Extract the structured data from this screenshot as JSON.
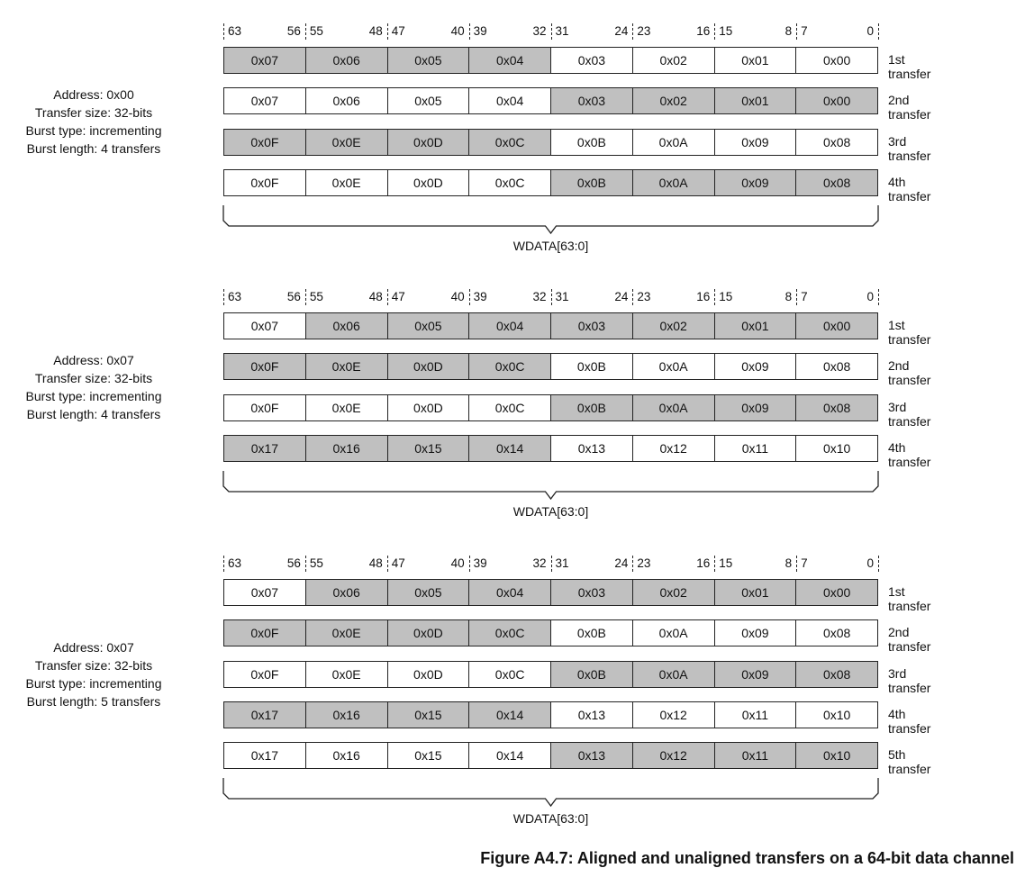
{
  "bit_ranges": [
    [
      "63",
      "56"
    ],
    [
      "55",
      "48"
    ],
    [
      "47",
      "40"
    ],
    [
      "39",
      "32"
    ],
    [
      "31",
      "24"
    ],
    [
      "23",
      "16"
    ],
    [
      "15",
      "8"
    ],
    [
      "7",
      "0"
    ]
  ],
  "shaded_color": "#c0c0c0",
  "sections": [
    {
      "info": [
        "Address: 0x00",
        "Transfer size: 32-bits",
        "Burst type: incrementing",
        "Burst length: 4 transfers"
      ],
      "bus_label": "WDATA[63:0]",
      "rows": [
        {
          "label": "1st transfer",
          "bytes": [
            "0x07",
            "0x06",
            "0x05",
            "0x04",
            "0x03",
            "0x02",
            "0x01",
            "0x00"
          ],
          "active": [
            1,
            1,
            1,
            1,
            0,
            0,
            0,
            0
          ]
        },
        {
          "label": "2nd transfer",
          "bytes": [
            "0x07",
            "0x06",
            "0x05",
            "0x04",
            "0x03",
            "0x02",
            "0x01",
            "0x00"
          ],
          "active": [
            0,
            0,
            0,
            0,
            1,
            1,
            1,
            1
          ]
        },
        {
          "label": "3rd transfer",
          "bytes": [
            "0x0F",
            "0x0E",
            "0x0D",
            "0x0C",
            "0x0B",
            "0x0A",
            "0x09",
            "0x08"
          ],
          "active": [
            1,
            1,
            1,
            1,
            0,
            0,
            0,
            0
          ]
        },
        {
          "label": "4th transfer",
          "bytes": [
            "0x0F",
            "0x0E",
            "0x0D",
            "0x0C",
            "0x0B",
            "0x0A",
            "0x09",
            "0x08"
          ],
          "active": [
            0,
            0,
            0,
            0,
            1,
            1,
            1,
            1
          ]
        }
      ]
    },
    {
      "info": [
        "Address: 0x07",
        "Transfer size: 32-bits",
        "Burst type: incrementing",
        "Burst length: 4 transfers"
      ],
      "bus_label": "WDATA[63:0]",
      "rows": [
        {
          "label": "1st transfer",
          "bytes": [
            "0x07",
            "0x06",
            "0x05",
            "0x04",
            "0x03",
            "0x02",
            "0x01",
            "0x00"
          ],
          "active": [
            0,
            1,
            1,
            1,
            1,
            1,
            1,
            1
          ]
        },
        {
          "label": "2nd transfer",
          "bytes": [
            "0x0F",
            "0x0E",
            "0x0D",
            "0x0C",
            "0x0B",
            "0x0A",
            "0x09",
            "0x08"
          ],
          "active": [
            1,
            1,
            1,
            1,
            0,
            0,
            0,
            0
          ]
        },
        {
          "label": "3rd transfer",
          "bytes": [
            "0x0F",
            "0x0E",
            "0x0D",
            "0x0C",
            "0x0B",
            "0x0A",
            "0x09",
            "0x08"
          ],
          "active": [
            0,
            0,
            0,
            0,
            1,
            1,
            1,
            1
          ]
        },
        {
          "label": "4th transfer",
          "bytes": [
            "0x17",
            "0x16",
            "0x15",
            "0x14",
            "0x13",
            "0x12",
            "0x11",
            "0x10"
          ],
          "active": [
            1,
            1,
            1,
            1,
            0,
            0,
            0,
            0
          ]
        }
      ]
    },
    {
      "info": [
        "Address: 0x07",
        "Transfer size: 32-bits",
        "Burst type: incrementing",
        "Burst length: 5 transfers"
      ],
      "bus_label": "WDATA[63:0]",
      "rows": [
        {
          "label": "1st transfer",
          "bytes": [
            "0x07",
            "0x06",
            "0x05",
            "0x04",
            "0x03",
            "0x02",
            "0x01",
            "0x00"
          ],
          "active": [
            0,
            1,
            1,
            1,
            1,
            1,
            1,
            1
          ]
        },
        {
          "label": "2nd transfer",
          "bytes": [
            "0x0F",
            "0x0E",
            "0x0D",
            "0x0C",
            "0x0B",
            "0x0A",
            "0x09",
            "0x08"
          ],
          "active": [
            1,
            1,
            1,
            1,
            0,
            0,
            0,
            0
          ]
        },
        {
          "label": "3rd transfer",
          "bytes": [
            "0x0F",
            "0x0E",
            "0x0D",
            "0x0C",
            "0x0B",
            "0x0A",
            "0x09",
            "0x08"
          ],
          "active": [
            0,
            0,
            0,
            0,
            1,
            1,
            1,
            1
          ]
        },
        {
          "label": "4th transfer",
          "bytes": [
            "0x17",
            "0x16",
            "0x15",
            "0x14",
            "0x13",
            "0x12",
            "0x11",
            "0x10"
          ],
          "active": [
            1,
            1,
            1,
            1,
            0,
            0,
            0,
            0
          ]
        },
        {
          "label": "5th transfer",
          "bytes": [
            "0x17",
            "0x16",
            "0x15",
            "0x14",
            "0x13",
            "0x12",
            "0x11",
            "0x10"
          ],
          "active": [
            0,
            0,
            0,
            0,
            1,
            1,
            1,
            1
          ]
        }
      ]
    }
  ],
  "caption": "Figure A4.7: Aligned and unaligned transfers on a 64-bit data channel"
}
